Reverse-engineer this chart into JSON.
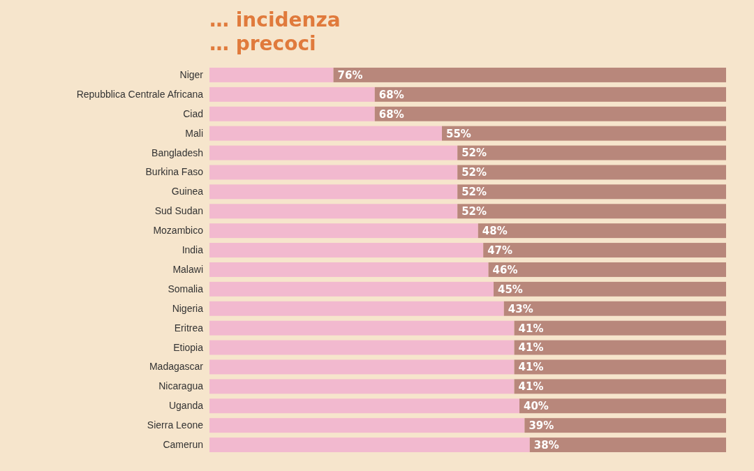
{
  "chart_data": {
    "type": "bar",
    "orientation": "horizontal",
    "stacked": true,
    "title": "… incidenza",
    "subtitle": "… precoci",
    "categories": [
      "Niger",
      "Repubblica Centrale Africana",
      "Ciad",
      "Mali",
      "Bangladesh",
      "Burkina Faso",
      "Guinea",
      "Sud Sudan",
      "Mozambico",
      "India",
      "Malawi",
      "Somalia",
      "Nigeria",
      "Eritrea",
      "Etiopia",
      "Madagascar",
      "Nicaragua",
      "Uganda",
      "Sierra Leone",
      "Camerun"
    ],
    "series": [
      {
        "color": "#f2b9cf",
        "values": [
          24,
          32,
          32,
          45,
          48,
          48,
          48,
          48,
          52,
          53,
          54,
          55,
          57,
          59,
          59,
          59,
          59,
          60,
          61,
          62
        ]
      },
      {
        "color": "#b8877b",
        "values": [
          76,
          68,
          68,
          55,
          52,
          52,
          52,
          52,
          48,
          47,
          46,
          45,
          43,
          41,
          41,
          41,
          41,
          40,
          39,
          38
        ],
        "value_labels": [
          "76%",
          "68%",
          "68%",
          "55%",
          "52%",
          "52%",
          "52%",
          "52%",
          "48%",
          "47%",
          "46%",
          "45%",
          "43%",
          "41%",
          "41%",
          "41%",
          "41%",
          "40%",
          "39%",
          "38%"
        ]
      }
    ],
    "xlim": [
      0,
      100
    ],
    "tick_labels": "y"
  }
}
